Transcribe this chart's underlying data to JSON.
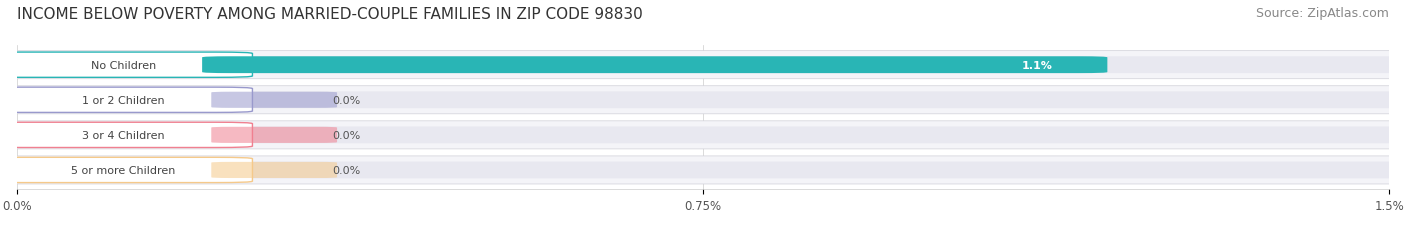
{
  "title": "INCOME BELOW POVERTY AMONG MARRIED-COUPLE FAMILIES IN ZIP CODE 98830",
  "source": "Source: ZipAtlas.com",
  "categories": [
    "No Children",
    "1 or 2 Children",
    "3 or 4 Children",
    "5 or more Children"
  ],
  "values": [
    1.1,
    0.0,
    0.0,
    0.0
  ],
  "bar_colors": [
    "#29b5b5",
    "#9999cc",
    "#f08090",
    "#f5c98a"
  ],
  "bg_row_colors": [
    "#eaf6f6",
    "#eeeef6",
    "#fce8ef",
    "#fdf3e3"
  ],
  "row_bg_color": "#f0f0f5",
  "xlim_max": 1.5,
  "xticks": [
    0.0,
    0.75,
    1.5
  ],
  "xtick_labels": [
    "0.0%",
    "0.75%",
    "1.5%"
  ],
  "title_fontsize": 11,
  "source_fontsize": 9,
  "fig_width": 14.06,
  "fig_height": 2.32,
  "dpi": 100
}
